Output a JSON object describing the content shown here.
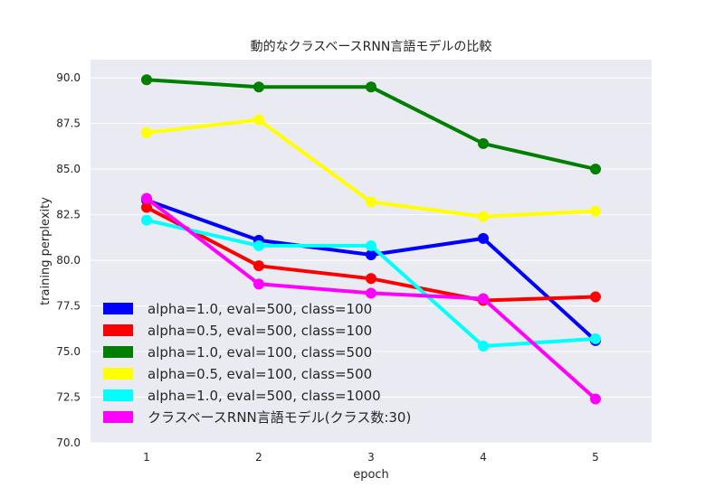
{
  "chart_data": {
    "type": "line",
    "title": "動的なクラスベースRNN言語モデルの比較",
    "xlabel": "epoch",
    "ylabel": "training perplexity",
    "x": [
      1,
      2,
      3,
      4,
      5
    ],
    "xlim": [
      0.5,
      5.5
    ],
    "ylim": [
      70.0,
      91.0
    ],
    "xticks": [
      "1",
      "2",
      "3",
      "4",
      "5"
    ],
    "yticks": [
      "70.0",
      "72.5",
      "75.0",
      "77.5",
      "80.0",
      "82.5",
      "85.0",
      "87.5",
      "90.0"
    ],
    "grid": true,
    "legend_position": "lower-left",
    "series": [
      {
        "name": "alpha=1.0, eval=500, class=100",
        "color": "#0000ff",
        "values": [
          83.3,
          81.1,
          80.3,
          81.2,
          75.6
        ]
      },
      {
        "name": "alpha=0.5, eval=500, class=100",
        "color": "#ff0000",
        "values": [
          82.9,
          79.7,
          79.0,
          77.8,
          78.0
        ]
      },
      {
        "name": "alpha=1.0, eval=100, class=500",
        "color": "#008000",
        "values": [
          89.9,
          89.5,
          89.5,
          86.4,
          85.0
        ]
      },
      {
        "name": "alpha=0.5, eval=100, class=500",
        "color": "#ffff00",
        "values": [
          87.0,
          87.7,
          83.2,
          82.4,
          82.7
        ]
      },
      {
        "name": "alpha=1.0, eval=500, class=1000",
        "color": "#00ffff",
        "values": [
          82.2,
          80.8,
          80.8,
          75.3,
          75.7
        ]
      },
      {
        "name": "クラスベースRNN言語モデル(クラス数:30)",
        "color": "#ff00ff",
        "values": [
          83.4,
          78.7,
          78.2,
          77.9,
          72.4
        ]
      }
    ]
  }
}
